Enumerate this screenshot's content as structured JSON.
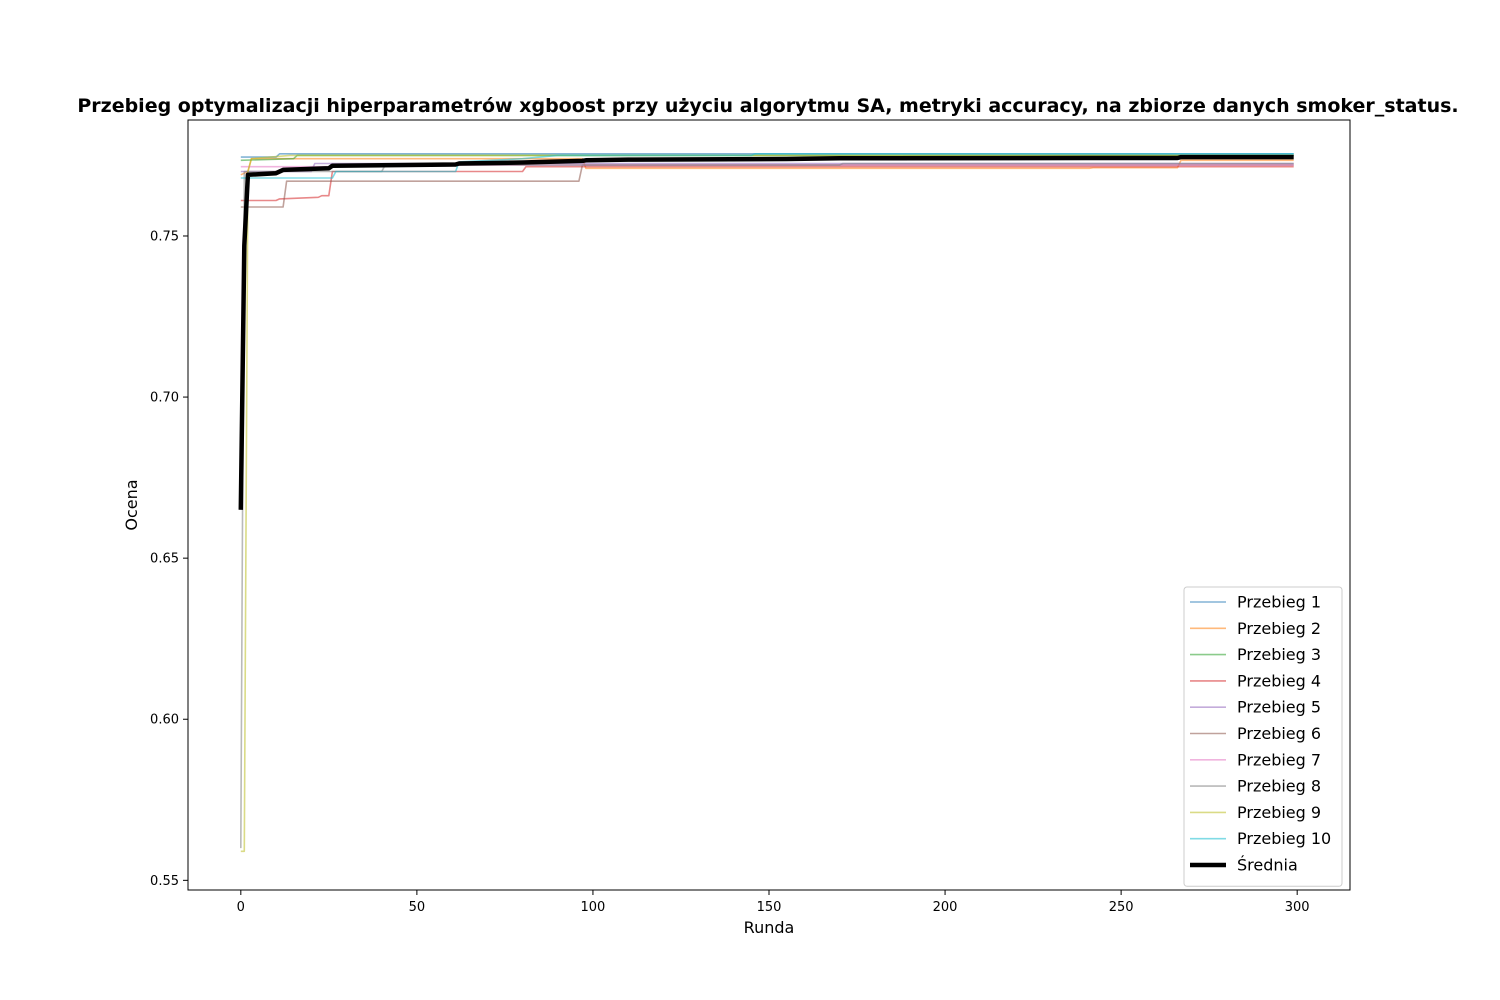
{
  "chart_data": {
    "type": "line",
    "title": "Przebieg optymalizacji hiperparametrów xgboost przy użyciu algorytmu SA, metryki accuracy, na zbiorze danych smoker_status.",
    "xlabel": "Runda",
    "ylabel": "Ocena",
    "xlim": [
      -15,
      315
    ],
    "ylim": [
      0.547,
      0.786
    ],
    "xticks": [
      0,
      50,
      100,
      150,
      200,
      250,
      300
    ],
    "xtick_labels": [
      "0",
      "50",
      "100",
      "150",
      "200",
      "250",
      "300"
    ],
    "yticks": [
      0.55,
      0.6,
      0.65,
      0.7,
      0.75
    ],
    "ytick_labels": [
      "0.55",
      "0.60",
      "0.65",
      "0.70",
      "0.75"
    ],
    "grid": false,
    "legend_position": "lower-right",
    "series": [
      {
        "name": "Przebieg 1",
        "color": "#1f77b4",
        "points": [
          [
            0,
            0.7745
          ],
          [
            10,
            0.7745
          ],
          [
            11,
            0.7755
          ],
          [
            299,
            0.7755
          ]
        ]
      },
      {
        "name": "Przebieg 2",
        "color": "#ff7f0e",
        "points": [
          [
            0,
            0.769
          ],
          [
            2,
            0.77
          ],
          [
            3,
            0.774
          ],
          [
            97,
            0.774
          ],
          [
            98,
            0.771
          ],
          [
            241,
            0.771
          ],
          [
            242,
            0.7712
          ],
          [
            266,
            0.7712
          ],
          [
            267,
            0.7735
          ],
          [
            299,
            0.7735
          ]
        ]
      },
      {
        "name": "Przebieg 3",
        "color": "#2ca02c",
        "points": [
          [
            0,
            0.7735
          ],
          [
            15,
            0.774
          ],
          [
            16,
            0.775
          ],
          [
            299,
            0.775
          ]
        ]
      },
      {
        "name": "Przebieg 4",
        "color": "#d62728",
        "points": [
          [
            0,
            0.761
          ],
          [
            10,
            0.761
          ],
          [
            11,
            0.7615
          ],
          [
            22,
            0.762
          ],
          [
            23,
            0.7625
          ],
          [
            25,
            0.7625
          ],
          [
            26,
            0.77
          ],
          [
            80,
            0.77
          ],
          [
            81,
            0.7715
          ],
          [
            299,
            0.7715
          ]
        ]
      },
      {
        "name": "Przebieg 5",
        "color": "#9467bd",
        "points": [
          [
            0,
            0.77
          ],
          [
            20,
            0.77
          ],
          [
            21,
            0.7725
          ],
          [
            299,
            0.7725
          ]
        ]
      },
      {
        "name": "Przebieg 6",
        "color": "#8c564b",
        "points": [
          [
            0,
            0.759
          ],
          [
            12,
            0.759
          ],
          [
            13,
            0.767
          ],
          [
            96,
            0.767
          ],
          [
            97,
            0.772
          ],
          [
            299,
            0.772
          ]
        ]
      },
      {
        "name": "Przebieg 7",
        "color": "#e377c2",
        "points": [
          [
            0,
            0.7715
          ],
          [
            30,
            0.7715
          ],
          [
            31,
            0.772
          ],
          [
            299,
            0.772
          ]
        ]
      },
      {
        "name": "Przebieg 8",
        "color": "#7f7f7f",
        "points": [
          [
            0,
            0.56
          ],
          [
            1,
            0.77
          ],
          [
            40,
            0.77
          ],
          [
            41,
            0.772
          ],
          [
            170,
            0.772
          ],
          [
            171,
            0.7725
          ],
          [
            299,
            0.7725
          ]
        ]
      },
      {
        "name": "Przebieg 9",
        "color": "#bcbd22",
        "points": [
          [
            0,
            0.559
          ],
          [
            1,
            0.559
          ],
          [
            2,
            0.77
          ],
          [
            3,
            0.774
          ],
          [
            14,
            0.775
          ],
          [
            299,
            0.775
          ]
        ]
      },
      {
        "name": "Przebieg 10",
        "color": "#17becf",
        "points": [
          [
            0,
            0.768
          ],
          [
            26,
            0.768
          ],
          [
            27,
            0.77
          ],
          [
            61,
            0.77
          ],
          [
            62,
            0.773
          ],
          [
            80,
            0.774
          ],
          [
            90,
            0.775
          ],
          [
            145,
            0.775
          ],
          [
            146,
            0.7755
          ],
          [
            299,
            0.7755
          ]
        ]
      },
      {
        "name": "Średnia",
        "color": "#000000",
        "bold": true,
        "points": [
          [
            0,
            0.665
          ],
          [
            1,
            0.747
          ],
          [
            2,
            0.769
          ],
          [
            10,
            0.7695
          ],
          [
            12,
            0.7705
          ],
          [
            25,
            0.771
          ],
          [
            26,
            0.7718
          ],
          [
            61,
            0.7722
          ],
          [
            62,
            0.7725
          ],
          [
            80,
            0.7728
          ],
          [
            97,
            0.7733
          ],
          [
            98,
            0.7735
          ],
          [
            110,
            0.7737
          ],
          [
            155,
            0.7739
          ],
          [
            170,
            0.7741
          ],
          [
            240,
            0.7742
          ],
          [
            266,
            0.7742
          ],
          [
            267,
            0.7745
          ],
          [
            299,
            0.7745
          ]
        ]
      }
    ]
  }
}
